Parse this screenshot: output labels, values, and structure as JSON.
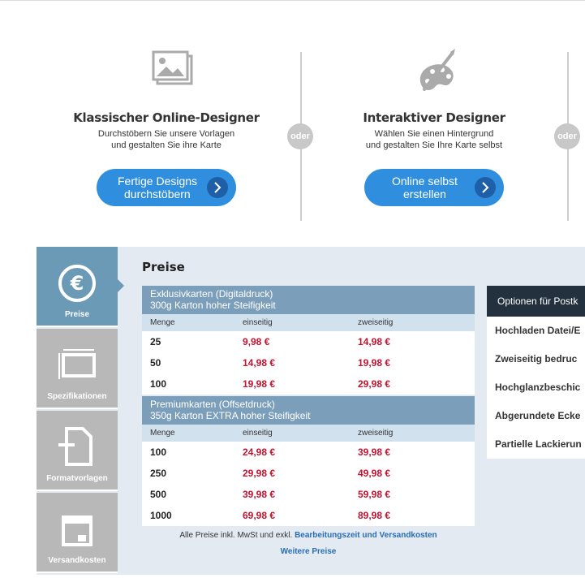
{
  "designers": [
    {
      "title": "Klassischer Online-Designer",
      "desc_line1": "Durchstöbern Sie unsere Vorlagen",
      "desc_line2": "und gestalten Sie ihre Karte",
      "button_line1": "Fertige Designs",
      "button_line2": "durchstöbern",
      "icon": "image-icon"
    },
    {
      "title": "Interaktiver Designer",
      "desc_line1": "Wählen Sie einen Hintergrund",
      "desc_line2": "und gestalten Sie Ihre Karte selbst",
      "button_line1": "Online selbst",
      "button_line2": "erstellen",
      "icon": "palette-icon"
    }
  ],
  "separator": "oder",
  "tabs": [
    {
      "label": "Preise",
      "icon": "euro-icon",
      "active": true
    },
    {
      "label": "Spezifikationen",
      "icon": "dimensions-icon",
      "active": false
    },
    {
      "label": "Formatvorlagen",
      "icon": "template-icon",
      "active": false
    },
    {
      "label": "Versandkosten",
      "icon": "box-icon",
      "active": false
    }
  ],
  "prices": {
    "title": "Preise",
    "tables": [
      {
        "head_line1": "Exklusivkarten (Digitaldruck)",
        "head_line2": "300g Karton hoher Steifigkeit",
        "columns": [
          "Menge",
          "einseitig",
          "zweiseitig"
        ],
        "rows": [
          [
            "25",
            "9,98 €",
            "14,98 €"
          ],
          [
            "50",
            "14,98 €",
            "19,98 €"
          ],
          [
            "100",
            "19,98 €",
            "29,98 €"
          ]
        ]
      },
      {
        "head_line1": "Premiumkarten (Offsetdruck)",
        "head_line2": "350g Karton EXTRA hoher Steifigkeit",
        "columns": [
          "Menge",
          "einseitig",
          "zweiseitig"
        ],
        "rows": [
          [
            "100",
            "24,98 €",
            "39,98 €"
          ],
          [
            "250",
            "29,98 €",
            "49,98 €"
          ],
          [
            "500",
            "39,98 €",
            "59,98 €"
          ],
          [
            "1000",
            "69,98 €",
            "89,98 €"
          ]
        ]
      }
    ],
    "note": "Alle Preise inkl. MwSt und exkl.",
    "note_link": "Bearbeitungszeit und Versandkosten",
    "more_link": "Weitere Preise"
  },
  "options": {
    "header": "Optionen für Postk",
    "items": [
      "Hochladen Datei/E",
      "Zweiseitig bedruc",
      "Hochglanzbeschic",
      "Abgerundete Ecke",
      "Partielle Lackierun"
    ]
  },
  "colors": {
    "button": "#2f8fde",
    "price": "#c4122f",
    "tab_active": "#6b9ab6",
    "table_head": "#7b9fbb"
  }
}
